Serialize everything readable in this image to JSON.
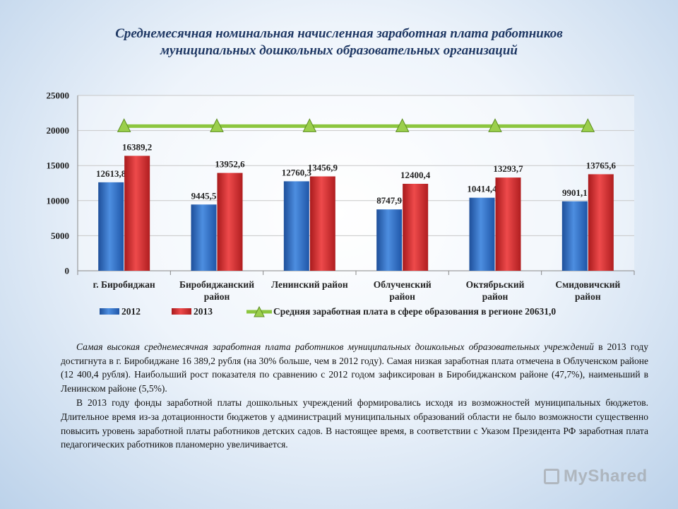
{
  "title": {
    "line1": "Среднемесячная номинальная начисленная заработная плата работников",
    "line2": "муниципальных дошкольных образовательных организаций"
  },
  "chart_data": {
    "type": "bar",
    "categories": [
      "г. Биробиджан",
      "Биробиджанский район",
      "Ленинский район",
      "Облученский район",
      "Октябрьский район",
      "Смидовичский район"
    ],
    "category_lines": [
      [
        "г. Биробиджан"
      ],
      [
        "Биробиджанский",
        "район"
      ],
      [
        "Ленинский район"
      ],
      [
        "Облученский",
        "район"
      ],
      [
        "Октябрьский",
        "район"
      ],
      [
        "Смидовичский",
        "район"
      ]
    ],
    "series": [
      {
        "name": "2012",
        "values": [
          12613.8,
          9445.5,
          12760.3,
          8747.9,
          10414.4,
          9901.1
        ],
        "labels": [
          "12613,8",
          "9445,5",
          "12760,3",
          "8747,9",
          "10414,4",
          "9901,1"
        ],
        "color": "#2e6fc4"
      },
      {
        "name": "2013",
        "values": [
          16389.2,
          13952.6,
          13456.9,
          12400.4,
          13293.7,
          13765.6
        ],
        "labels": [
          "16389,2",
          "13952,6",
          "13456,9",
          "12400,4",
          "13293,7",
          "13765,6"
        ],
        "color": "#d9282a"
      }
    ],
    "reference_line": {
      "name": "Средняя заработная плата в сфере образования в регионе 20631,0",
      "value": 20631.0,
      "color": "#8cc63f"
    },
    "ylim": [
      0,
      25000
    ],
    "yticks": [
      0,
      5000,
      10000,
      15000,
      20000,
      25000
    ],
    "grid": true,
    "legend_position": "bottom"
  },
  "body": {
    "p1_italic": "Самая высокая среднемесячная заработная плата работников муниципальных дошкольных образовательных учреждений",
    "p1_rest": " в 2013 году достигнута в г. Биробиджане 16 389,2 рубля (на 30% больше, чем в 2012 году). Самая низкая заработная плата отмечена в Облученском районе (12 400,4 рубля). Наибольший рост показателя по сравнению с 2012 годом зафиксирован в Биробиджанском районе (47,7%), наименьший в Ленинском районе (5,5%).",
    "p2": "В 2013 году фонды заработной платы дошкольных учреждений формировались исходя из возможностей муниципальных бюджетов. Длительное время из-за дотационности бюджетов у администраций муниципальных образований области не было возможности существенно повысить уровень заработной платы работников детских садов. В настоящее время, в соответствии с Указом Президента РФ заработная плата педагогических работников планомерно увеличивается."
  },
  "watermark": "MyShared",
  "colors": {
    "title": "#1f3864",
    "axis": "#888888",
    "grid": "#c8c8c8"
  }
}
